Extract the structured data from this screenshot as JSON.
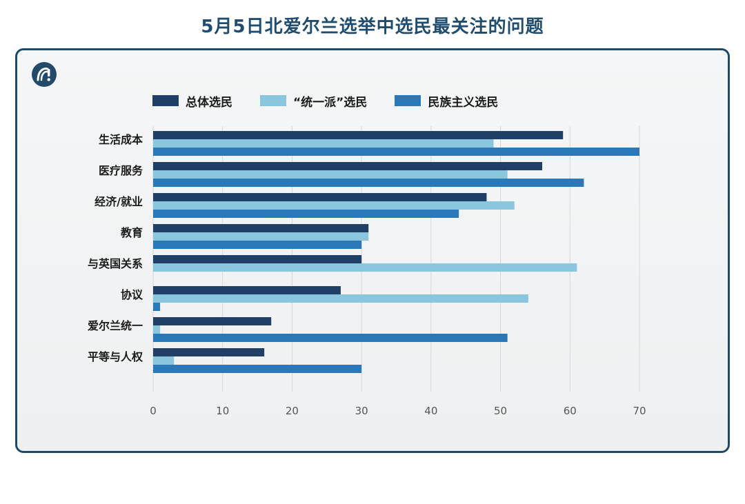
{
  "title": "5月5日北爱尔兰选举中选民最关注的问题",
  "colors": {
    "background": "#eef0f1",
    "border": "#1e4a6a",
    "title": "#1f4c6f"
  },
  "logo": {
    "icon": "brand-logo-icon"
  },
  "chart_data": {
    "type": "bar",
    "orientation": "horizontal",
    "categories": [
      "生活成本",
      "医疗服务",
      "经济/就业",
      "教育",
      "与英国关系",
      "协议",
      "爱尔兰统一",
      "平等与人权"
    ],
    "series": [
      {
        "name": "总体选民",
        "color": "#1f3f66",
        "values": [
          59,
          56,
          48,
          31,
          30,
          27,
          17,
          16
        ]
      },
      {
        "name": "“统一派”选民",
        "color": "#8ac6de",
        "values": [
          49,
          51,
          52,
          31,
          61,
          54,
          1,
          3
        ]
      },
      {
        "name": "民族主义选民",
        "color": "#2a78b8",
        "values": [
          70,
          62,
          44,
          30,
          0,
          1,
          51,
          30
        ]
      }
    ],
    "xlim": [
      0,
      70
    ],
    "xticks": [
      0,
      10,
      20,
      30,
      40,
      50,
      60,
      70
    ],
    "grid": true,
    "legend": "top-left",
    "xlabel": "",
    "ylabel": ""
  }
}
